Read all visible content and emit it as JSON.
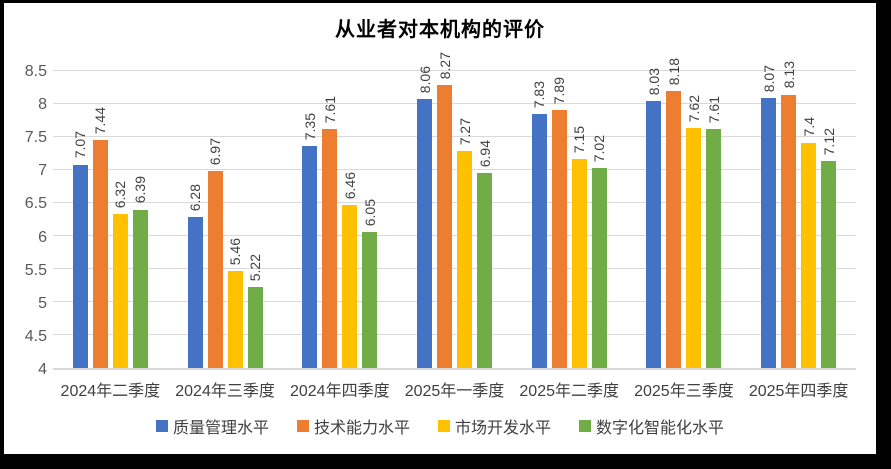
{
  "chart_data": {
    "type": "bar",
    "title": "从业者对本机构的评价",
    "xlabel": "",
    "ylabel": "",
    "categories": [
      "2024年二季度",
      "2024年三季度",
      "2024年四季度",
      "2025年一季度",
      "2025年二季度",
      "2025年三季度",
      "2025年四季度"
    ],
    "series": [
      {
        "name": "质量管理水平",
        "color": "#4472C4",
        "values": [
          7.07,
          6.28,
          7.35,
          8.06,
          7.83,
          8.03,
          8.07
        ],
        "labels": [
          "7.07",
          "6.28",
          "7.35",
          "8.06",
          "7.83",
          "8.03",
          "8.07"
        ]
      },
      {
        "name": "技术能力水平",
        "color": "#ED7D31",
        "values": [
          7.44,
          6.97,
          7.61,
          8.27,
          7.89,
          8.18,
          8.13
        ],
        "labels": [
          "7.44",
          "6.97",
          "7.61",
          "8.27",
          "7.89",
          "8.18",
          "8.13"
        ]
      },
      {
        "name": "市场开发水平",
        "color": "#FFC000",
        "values": [
          6.32,
          5.46,
          6.46,
          7.27,
          7.15,
          7.62,
          7.4
        ],
        "labels": [
          "6.32",
          "5.46",
          "6.46",
          "7.27",
          "7.15",
          "7.62",
          "7.4"
        ]
      },
      {
        "name": "数字化智能化水平",
        "color": "#70AD47",
        "values": [
          6.39,
          5.22,
          6.05,
          6.94,
          7.02,
          7.61,
          7.12
        ],
        "labels": [
          "6.39",
          "5.22",
          "6.05",
          "6.94",
          "7.02",
          "7.61",
          "7.12"
        ]
      }
    ],
    "ylim": [
      4,
      8.5
    ],
    "ytick_step": 0.5,
    "ytick_labels": [
      "8.5",
      "8",
      "7.5",
      "7",
      "6.5",
      "6",
      "5.5",
      "5",
      "4.5",
      "4"
    ],
    "grid": true,
    "legend_position": "bottom",
    "data_label_rotation": "vertical",
    "colors": {
      "page_border": "#000000",
      "plot_background": "#FFFFFF",
      "gridline": "#D9D9D9",
      "axis_tick_text": "#595959",
      "data_label_text": "#404040",
      "category_text": "#404040",
      "title_text": "#000000"
    }
  }
}
